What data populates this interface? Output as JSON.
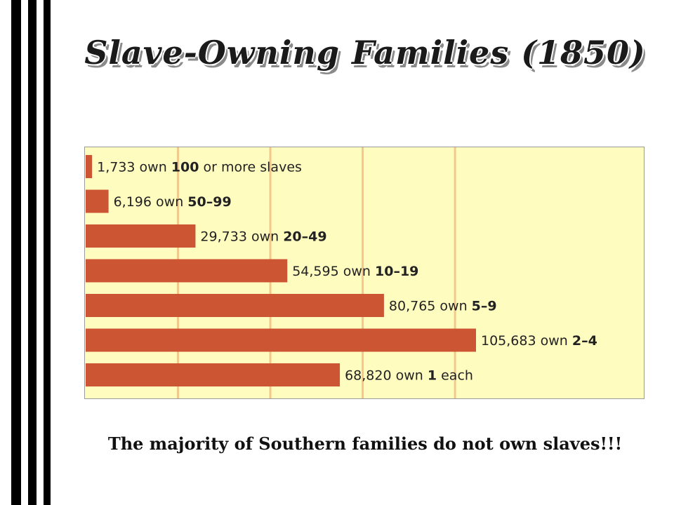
{
  "page": {
    "title": "Slave-Owning Families (1850)",
    "caption": "The majority of Southern families do not own slaves!!!"
  },
  "colors": {
    "background": "#fffcc0",
    "bar": "#cc5533",
    "grid": "#f2c98a",
    "border": "#9a9a9a",
    "stripes": "#000000"
  },
  "chart_data": {
    "type": "bar",
    "orientation": "horizontal",
    "title": "",
    "xlabel": "",
    "ylabel": "",
    "grid": true,
    "xlim": [
      0,
      120000
    ],
    "bars": [
      {
        "value": 1733,
        "count_text": "1,733",
        "mid_text": " own ",
        "range_text": "100",
        "suffix_text": " or more slaves"
      },
      {
        "value": 6196,
        "count_text": "6,196",
        "mid_text": " own ",
        "range_text": "50–99",
        "suffix_text": ""
      },
      {
        "value": 29733,
        "count_text": "29,733",
        "mid_text": " own ",
        "range_text": "20–49",
        "suffix_text": ""
      },
      {
        "value": 54595,
        "count_text": "54,595",
        "mid_text": " own ",
        "range_text": "10–19",
        "suffix_text": ""
      },
      {
        "value": 80765,
        "count_text": "80,765",
        "mid_text": " own ",
        "range_text": "5–9",
        "suffix_text": ""
      },
      {
        "value": 105683,
        "count_text": "105,683",
        "mid_text": " own ",
        "range_text": "2–4",
        "suffix_text": ""
      },
      {
        "value": 68820,
        "count_text": "68,820",
        "mid_text": " own ",
        "range_text": "1",
        "suffix_text": " each"
      }
    ]
  }
}
